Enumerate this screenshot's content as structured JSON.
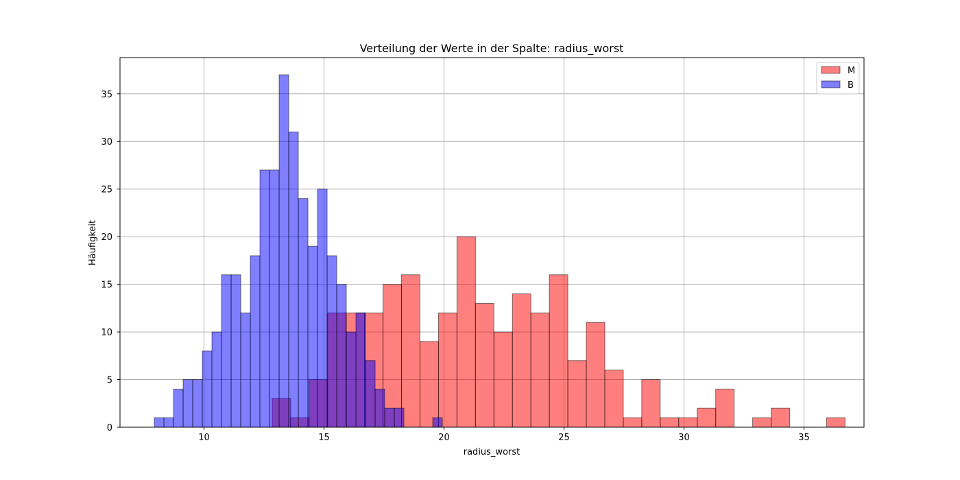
{
  "chart_data": {
    "type": "bar",
    "title": "Verteilung der Werte in der Spalte: radius_worst",
    "xlabel": "radius_worst",
    "ylabel": "Häufigkeit",
    "xlim": [
      6.5,
      37.5
    ],
    "ylim": [
      0,
      38.8
    ],
    "xticks": [
      10,
      15,
      20,
      25,
      30,
      35
    ],
    "yticks": [
      0,
      5,
      10,
      15,
      20,
      25,
      30,
      35
    ],
    "grid": true,
    "legend_position": "top-right",
    "series": [
      {
        "name": "M",
        "color": "#ff0000",
        "bin_edges": [
          12.84,
          13.61,
          14.38,
          15.15,
          15.92,
          16.69,
          17.46,
          18.23,
          19.0,
          19.77,
          20.54,
          21.31,
          22.08,
          22.85,
          23.62,
          24.39,
          25.16,
          25.93,
          26.7,
          27.47,
          28.24,
          29.01,
          29.78,
          30.55,
          31.32,
          32.09,
          32.86,
          33.63,
          34.4,
          35.17,
          35.94,
          36.71
        ],
        "values": [
          3,
          1,
          5,
          12,
          12,
          12,
          15,
          16,
          9,
          12,
          20,
          13,
          10,
          14,
          12,
          16,
          7,
          11,
          6,
          1,
          5,
          1,
          1,
          2,
          4,
          0,
          1,
          2,
          0,
          0,
          1
        ]
      },
      {
        "name": "B",
        "color": "#0000ff",
        "bin_edges": [
          7.93,
          8.33,
          8.73,
          9.13,
          9.53,
          9.93,
          10.33,
          10.73,
          11.13,
          11.53,
          11.93,
          12.33,
          12.73,
          13.13,
          13.53,
          13.93,
          14.33,
          14.73,
          15.13,
          15.53,
          15.93,
          16.33,
          16.73,
          17.13,
          17.53,
          17.93,
          18.33,
          18.73,
          19.13,
          19.53,
          19.93
        ],
        "values": [
          1,
          1,
          4,
          5,
          5,
          8,
          10,
          16,
          16,
          12,
          18,
          27,
          27,
          37,
          31,
          24,
          19,
          25,
          18,
          15,
          10,
          12,
          7,
          4,
          2,
          2,
          0,
          0,
          0,
          1
        ]
      }
    ]
  }
}
